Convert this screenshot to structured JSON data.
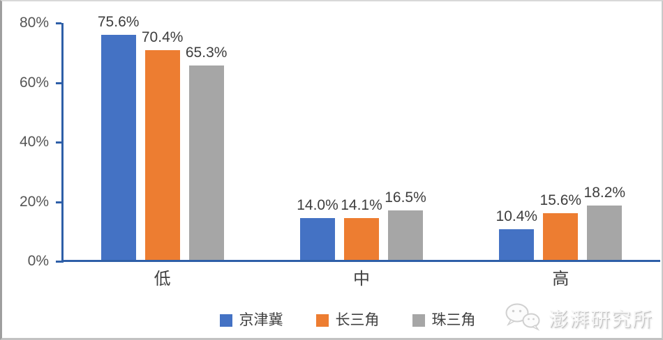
{
  "chart_data": {
    "type": "bar",
    "categories": [
      "低",
      "中",
      "高"
    ],
    "series": [
      {
        "name": "京津冀",
        "color": "#4472C4",
        "values": [
          75.6,
          14.0,
          10.4
        ],
        "labels": [
          "75.6%",
          "14.0%",
          "10.4%"
        ]
      },
      {
        "name": "长三角",
        "color": "#ED7D31",
        "values": [
          70.4,
          14.1,
          15.6
        ],
        "labels": [
          "70.4%",
          "14.1%",
          "15.6%"
        ]
      },
      {
        "name": "珠三角",
        "color": "#A6A6A6",
        "values": [
          65.3,
          16.5,
          18.2
        ],
        "labels": [
          "65.3%",
          "16.5%",
          "18.2%"
        ]
      }
    ],
    "title": "",
    "xlabel": "",
    "ylabel": "",
    "y_axis": {
      "min": 0,
      "max": 80,
      "step": 20,
      "tick_labels": [
        "0%",
        "20%",
        "40%",
        "60%",
        "80%"
      ]
    },
    "grid": false,
    "legend_position": "bottom",
    "axis_color": "#2E5FA8",
    "label_color": "#3d3d3d"
  },
  "watermark": {
    "text": "澎湃研究所",
    "icon": "wechat-bubbles-icon"
  }
}
